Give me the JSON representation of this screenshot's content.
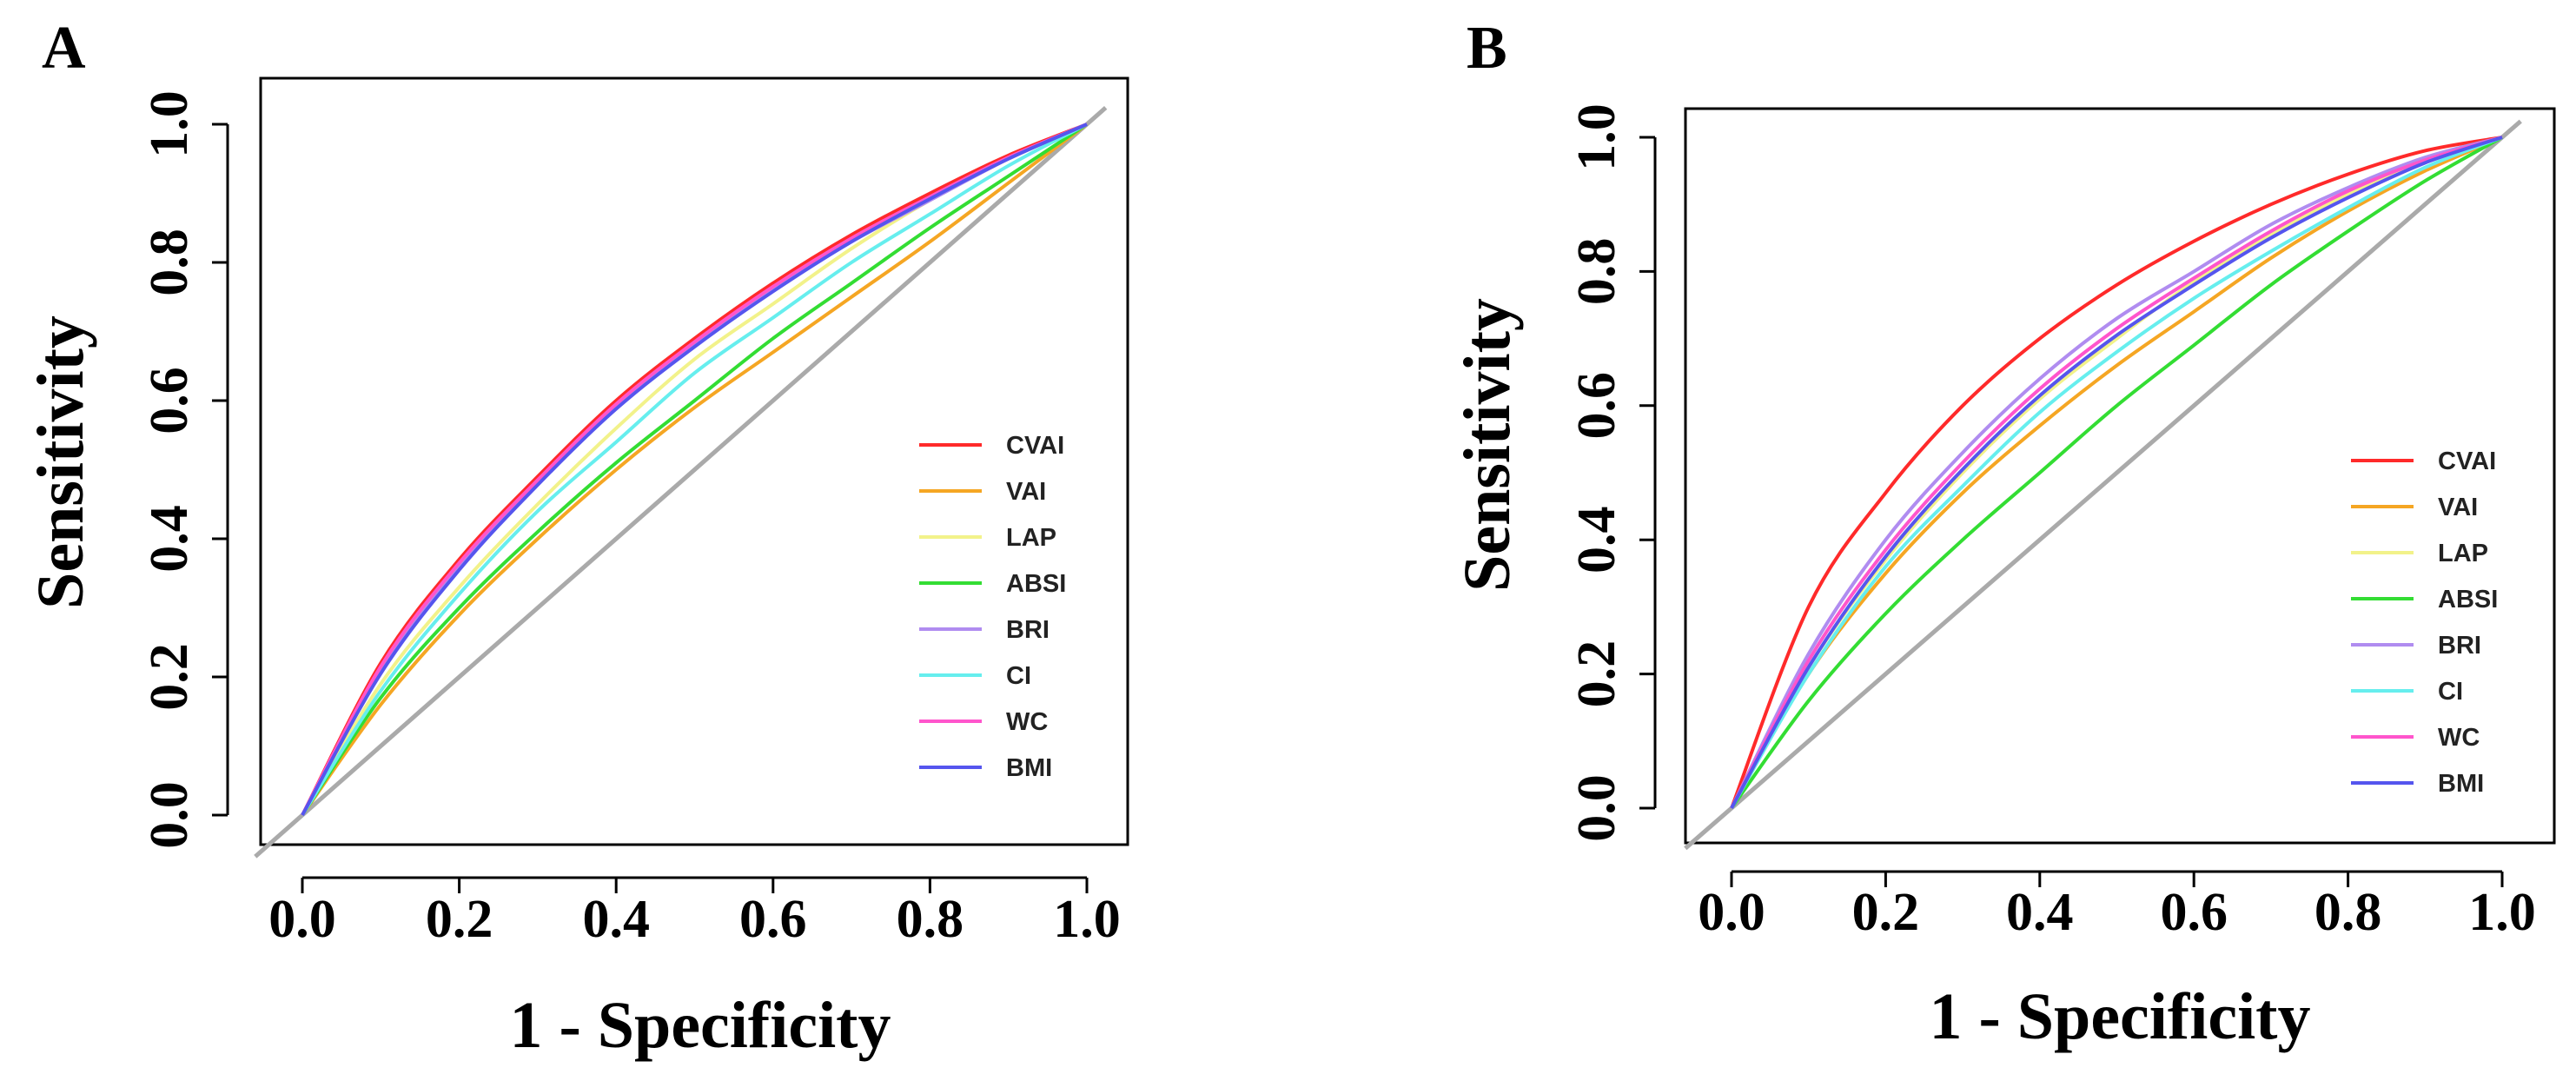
{
  "chart_data": [
    {
      "panel": "A",
      "type": "line",
      "xlabel": "1 - Specificity",
      "ylabel": "Sensitivity",
      "xlim": [
        0,
        1
      ],
      "ylim": [
        0,
        1
      ],
      "xticks": [
        "0.0",
        "0.2",
        "0.4",
        "0.6",
        "0.8",
        "1.0"
      ],
      "yticks": [
        "0.0",
        "0.2",
        "0.4",
        "0.6",
        "0.8",
        "1.0"
      ],
      "grid": false,
      "legend_position": "right",
      "reference_line": {
        "x": [
          0,
          1
        ],
        "y": [
          0,
          1
        ],
        "color": "#aaaaaa"
      },
      "series": [
        {
          "name": "CVAI",
          "color": "#ff2a2a",
          "x": [
            0,
            0.1,
            0.2,
            0.3,
            0.4,
            0.5,
            0.6,
            0.7,
            0.8,
            0.9,
            1.0
          ],
          "y": [
            0,
            0.22,
            0.37,
            0.49,
            0.6,
            0.69,
            0.77,
            0.84,
            0.9,
            0.955,
            1.0
          ]
        },
        {
          "name": "VAI",
          "color": "#f5a623",
          "x": [
            0,
            0.1,
            0.2,
            0.3,
            0.4,
            0.5,
            0.6,
            0.7,
            0.8,
            0.9,
            1.0
          ],
          "y": [
            0,
            0.16,
            0.29,
            0.4,
            0.5,
            0.59,
            0.67,
            0.75,
            0.83,
            0.915,
            1.0
          ]
        },
        {
          "name": "LAP",
          "color": "#f2f28a",
          "x": [
            0,
            0.1,
            0.2,
            0.3,
            0.4,
            0.5,
            0.6,
            0.7,
            0.8,
            0.9,
            1.0
          ],
          "y": [
            0,
            0.19,
            0.33,
            0.45,
            0.56,
            0.66,
            0.74,
            0.82,
            0.89,
            0.95,
            1.0
          ]
        },
        {
          "name": "ABSI",
          "color": "#33dd33",
          "x": [
            0,
            0.1,
            0.2,
            0.3,
            0.4,
            0.5,
            0.6,
            0.7,
            0.8,
            0.9,
            1.0
          ],
          "y": [
            0,
            0.17,
            0.3,
            0.41,
            0.51,
            0.6,
            0.69,
            0.77,
            0.85,
            0.925,
            1.0
          ]
        },
        {
          "name": "BRI",
          "color": "#b08cf0",
          "x": [
            0,
            0.1,
            0.2,
            0.3,
            0.4,
            0.5,
            0.6,
            0.7,
            0.8,
            0.9,
            1.0
          ],
          "y": [
            0,
            0.21,
            0.36,
            0.48,
            0.59,
            0.68,
            0.76,
            0.83,
            0.89,
            0.95,
            1.0
          ]
        },
        {
          "name": "CI",
          "color": "#66eeee",
          "x": [
            0,
            0.1,
            0.2,
            0.3,
            0.4,
            0.5,
            0.6,
            0.7,
            0.8,
            0.9,
            1.0
          ],
          "y": [
            0,
            0.18,
            0.32,
            0.44,
            0.54,
            0.64,
            0.72,
            0.8,
            0.87,
            0.94,
            1.0
          ]
        },
        {
          "name": "WC",
          "color": "#ff55cc",
          "x": [
            0,
            0.1,
            0.2,
            0.3,
            0.4,
            0.5,
            0.6,
            0.7,
            0.8,
            0.9,
            1.0
          ],
          "y": [
            0,
            0.215,
            0.365,
            0.485,
            0.595,
            0.685,
            0.765,
            0.835,
            0.895,
            0.952,
            1.0
          ]
        },
        {
          "name": "BMI",
          "color": "#5555ee",
          "x": [
            0,
            0.1,
            0.2,
            0.3,
            0.4,
            0.5,
            0.6,
            0.7,
            0.8,
            0.9,
            1.0
          ],
          "y": [
            0,
            0.205,
            0.355,
            0.478,
            0.588,
            0.678,
            0.758,
            0.83,
            0.892,
            0.95,
            1.0
          ]
        }
      ]
    },
    {
      "panel": "B",
      "type": "line",
      "xlabel": "1 - Specificity",
      "ylabel": "Sensitivity",
      "xlim": [
        0,
        1
      ],
      "ylim": [
        0,
        1
      ],
      "xticks": [
        "0.0",
        "0.2",
        "0.4",
        "0.6",
        "0.8",
        "1.0"
      ],
      "yticks": [
        "0.0",
        "0.2",
        "0.4",
        "0.6",
        "0.8",
        "1.0"
      ],
      "grid": false,
      "legend_position": "right",
      "reference_line": {
        "x": [
          0,
          1
        ],
        "y": [
          0,
          1
        ],
        "color": "#aaaaaa"
      },
      "series": [
        {
          "name": "CVAI",
          "color": "#ff2a2a",
          "x": [
            0,
            0.1,
            0.2,
            0.3,
            0.4,
            0.5,
            0.6,
            0.7,
            0.8,
            0.9,
            1.0
          ],
          "y": [
            0,
            0.3,
            0.47,
            0.6,
            0.7,
            0.78,
            0.845,
            0.9,
            0.945,
            0.98,
            1.0
          ]
        },
        {
          "name": "VAI",
          "color": "#f5a623",
          "x": [
            0,
            0.1,
            0.2,
            0.3,
            0.4,
            0.5,
            0.6,
            0.7,
            0.8,
            0.9,
            1.0
          ],
          "y": [
            0,
            0.2,
            0.35,
            0.47,
            0.57,
            0.66,
            0.74,
            0.82,
            0.89,
            0.95,
            1.0
          ]
        },
        {
          "name": "LAP",
          "color": "#f2f28a",
          "x": [
            0,
            0.1,
            0.2,
            0.3,
            0.4,
            0.5,
            0.6,
            0.7,
            0.8,
            0.9,
            1.0
          ],
          "y": [
            0,
            0.21,
            0.37,
            0.5,
            0.61,
            0.7,
            0.785,
            0.855,
            0.915,
            0.965,
            1.0
          ]
        },
        {
          "name": "ABSI",
          "color": "#33dd33",
          "x": [
            0,
            0.1,
            0.2,
            0.3,
            0.4,
            0.5,
            0.6,
            0.7,
            0.8,
            0.9,
            1.0
          ],
          "y": [
            0,
            0.16,
            0.29,
            0.4,
            0.5,
            0.6,
            0.69,
            0.78,
            0.86,
            0.935,
            1.0
          ]
        },
        {
          "name": "BRI",
          "color": "#b08cf0",
          "x": [
            0,
            0.1,
            0.2,
            0.3,
            0.4,
            0.5,
            0.6,
            0.7,
            0.8,
            0.9,
            1.0
          ],
          "y": [
            0,
            0.23,
            0.4,
            0.53,
            0.64,
            0.73,
            0.8,
            0.87,
            0.925,
            0.97,
            1.0
          ]
        },
        {
          "name": "CI",
          "color": "#66eeee",
          "x": [
            0,
            0.1,
            0.2,
            0.3,
            0.4,
            0.5,
            0.6,
            0.7,
            0.8,
            0.9,
            1.0
          ],
          "y": [
            0,
            0.2,
            0.36,
            0.48,
            0.59,
            0.68,
            0.76,
            0.83,
            0.895,
            0.955,
            1.0
          ]
        },
        {
          "name": "WC",
          "color": "#ff55cc",
          "x": [
            0,
            0.1,
            0.2,
            0.3,
            0.4,
            0.5,
            0.6,
            0.7,
            0.8,
            0.9,
            1.0
          ],
          "y": [
            0,
            0.22,
            0.385,
            0.515,
            0.625,
            0.715,
            0.79,
            0.86,
            0.92,
            0.966,
            1.0
          ]
        },
        {
          "name": "BMI",
          "color": "#5555ee",
          "x": [
            0,
            0.1,
            0.2,
            0.3,
            0.4,
            0.5,
            0.6,
            0.7,
            0.8,
            0.9,
            1.0
          ],
          "y": [
            0,
            0.21,
            0.375,
            0.505,
            0.615,
            0.705,
            0.78,
            0.85,
            0.91,
            0.962,
            1.0
          ]
        }
      ]
    }
  ]
}
